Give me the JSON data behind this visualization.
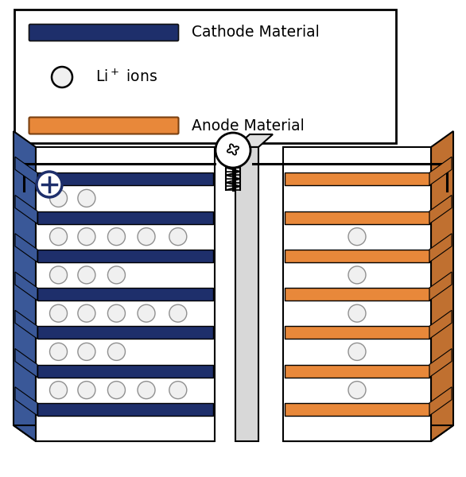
{
  "cathode_color": "#1e2f6b",
  "cathode_side_color": "#3a5898",
  "cathode_bg_color": "#4a6090",
  "anode_color": "#e8883a",
  "anode_side_color": "#c07030",
  "separator_color": "#d8d8d8",
  "wire_color": "#000000",
  "ball_color": "#f0f0f0",
  "ball_edge_color": "#888888",
  "background": "#ffffff",
  "plus_color": "#1e2f6b",
  "legend_text_cathode": "Cathode Material",
  "legend_text_li": "Li$^+$ ions",
  "legend_text_anode": "Anode Material",
  "cathode_ball_rows": [
    [
      0.12,
      0.28,
      0.45,
      0.62,
      0.8
    ],
    [
      0.12,
      0.28,
      0.45
    ],
    [
      0.12,
      0.28,
      0.45,
      0.62,
      0.8
    ],
    [
      0.12,
      0.28,
      0.45
    ],
    [
      0.12,
      0.28,
      0.45,
      0.62,
      0.8
    ],
    [
      0.12,
      0.28
    ]
  ],
  "anode_ball_rows": [
    [
      0.5
    ],
    [
      0.5
    ],
    [
      0.5
    ],
    [
      0.5
    ],
    [
      0.5
    ]
  ]
}
